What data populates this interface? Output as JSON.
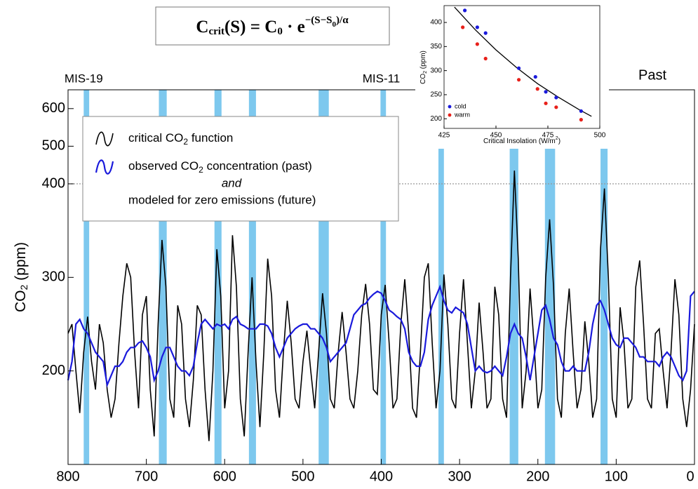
{
  "chart_data": {
    "type": "line",
    "formula": [
      {
        "text": "C"
      },
      {
        "text": "crit",
        "shift": "sub"
      },
      {
        "text": "(S) = C"
      },
      {
        "text": "0",
        "shift": "sub"
      },
      {
        "text": " · e"
      },
      {
        "text": "−(S−S",
        "shift": "sup"
      },
      {
        "text": "0",
        "shift": "supsub"
      },
      {
        "text": ")/α",
        "shift": "sup"
      }
    ],
    "ylabel": [
      "CO",
      "2",
      " (ppm)"
    ],
    "annotations": [
      {
        "text": "MIS-19",
        "x": 780
      },
      {
        "text": "MIS-11",
        "x": 400
      }
    ],
    "corner_label": "Past",
    "xlim": [
      800,
      0
    ],
    "xticks": [
      800,
      700,
      600,
      500,
      400,
      300,
      200,
      100,
      0
    ],
    "ylim": [
      100,
      650
    ],
    "ybreak": 400,
    "yticks": [
      200,
      300,
      400,
      500,
      600
    ],
    "hline": 400,
    "bands": [
      [
        780,
        773
      ],
      [
        684,
        674
      ],
      [
        613,
        604
      ],
      [
        569,
        560
      ],
      [
        480,
        467
      ],
      [
        401,
        394
      ],
      [
        327,
        320
      ],
      [
        236,
        225
      ],
      [
        191,
        178
      ],
      [
        120,
        111
      ]
    ],
    "band_color": "#7dc8ee",
    "x": [
      800,
      795,
      790,
      785,
      780,
      775,
      770,
      765,
      760,
      755,
      750,
      745,
      740,
      735,
      730,
      725,
      720,
      715,
      710,
      705,
      700,
      695,
      690,
      685,
      680,
      675,
      670,
      665,
      660,
      655,
      650,
      645,
      640,
      635,
      630,
      625,
      620,
      615,
      610,
      605,
      600,
      595,
      590,
      585,
      580,
      575,
      570,
      565,
      560,
      555,
      550,
      545,
      540,
      535,
      530,
      525,
      520,
      515,
      510,
      505,
      500,
      495,
      490,
      485,
      480,
      475,
      470,
      465,
      460,
      455,
      450,
      445,
      440,
      435,
      430,
      425,
      420,
      415,
      410,
      405,
      400,
      395,
      390,
      385,
      380,
      375,
      370,
      365,
      360,
      355,
      350,
      345,
      340,
      335,
      330,
      325,
      320,
      315,
      310,
      305,
      300,
      295,
      290,
      285,
      280,
      275,
      270,
      265,
      260,
      255,
      250,
      245,
      240,
      235,
      230,
      225,
      220,
      215,
      210,
      205,
      200,
      195,
      190,
      185,
      180,
      175,
      170,
      165,
      160,
      155,
      150,
      145,
      140,
      135,
      130,
      125,
      120,
      115,
      110,
      105,
      100,
      95,
      90,
      85,
      80,
      75,
      70,
      65,
      60,
      55,
      50,
      45,
      40,
      35,
      30,
      25,
      20,
      15,
      10,
      5,
      0
    ],
    "series": [
      {
        "name": [
          "critical CO",
          "2",
          " function"
        ],
        "color": "#000000",
        "values": [
          240,
          250,
          200,
          155,
          220,
          258,
          210,
          180,
          250,
          230,
          180,
          150,
          170,
          230,
          280,
          315,
          300,
          220,
          160,
          260,
          280,
          180,
          130,
          250,
          340,
          290,
          170,
          150,
          270,
          250,
          170,
          140,
          190,
          270,
          260,
          180,
          125,
          200,
          330,
          280,
          160,
          200,
          345,
          290,
          170,
          130,
          220,
          300,
          210,
          140,
          220,
          320,
          280,
          180,
          150,
          220,
          275,
          230,
          170,
          160,
          210,
          243,
          200,
          160,
          220,
          283,
          240,
          170,
          160,
          220,
          263,
          220,
          170,
          160,
          200,
          260,
          293,
          250,
          180,
          175,
          260,
          292,
          230,
          160,
          170,
          250,
          298,
          240,
          160,
          150,
          220,
          300,
          315,
          230,
          160,
          200,
          303,
          250,
          170,
          160,
          240,
          298,
          230,
          160,
          200,
          273,
          220,
          160,
          170,
          290,
          260,
          170,
          150,
          300,
          435,
          320,
          160,
          200,
          288,
          230,
          160,
          180,
          300,
          362,
          290,
          170,
          150,
          240,
          288,
          220,
          160,
          180,
          253,
          210,
          150,
          170,
          330,
          395,
          300,
          170,
          150,
          268,
          230,
          160,
          170,
          290,
          318,
          250,
          170,
          160,
          240,
          245,
          200,
          160,
          220,
          298,
          260,
          170,
          140,
          180,
          250
        ]
      },
      {
        "name": [
          "observed CO",
          "2",
          " concentration (past)"
        ],
        "extra": [
          "and",
          "modeled for zero emissions (future)"
        ],
        "color": "#1a1adc",
        "values": [
          190,
          210,
          250,
          255,
          245,
          240,
          230,
          220,
          215,
          210,
          185,
          195,
          205,
          205,
          210,
          220,
          225,
          225,
          230,
          232,
          225,
          215,
          190,
          200,
          215,
          225,
          225,
          215,
          205,
          200,
          200,
          195,
          205,
          230,
          250,
          255,
          250,
          245,
          250,
          248,
          250,
          245,
          255,
          258,
          250,
          248,
          245,
          245,
          245,
          250,
          250,
          248,
          240,
          225,
          215,
          225,
          235,
          240,
          245,
          248,
          250,
          250,
          245,
          245,
          240,
          235,
          225,
          210,
          215,
          220,
          225,
          230,
          245,
          260,
          265,
          270,
          272,
          278,
          282,
          285,
          283,
          275,
          265,
          262,
          258,
          255,
          245,
          220,
          210,
          205,
          205,
          220,
          255,
          270,
          280,
          290,
          275,
          265,
          262,
          268,
          265,
          262,
          250,
          225,
          200,
          205,
          200,
          198,
          200,
          205,
          200,
          195,
          215,
          240,
          250,
          240,
          235,
          215,
          190,
          215,
          240,
          265,
          270,
          255,
          235,
          228,
          210,
          200,
          200,
          205,
          200,
          200,
          200,
          220,
          250,
          270,
          275,
          265,
          250,
          235,
          228,
          225,
          235,
          235,
          230,
          225,
          215,
          215,
          210,
          210,
          210,
          205,
          215,
          220,
          215,
          205,
          195,
          190,
          200,
          280,
          285
        ]
      }
    ],
    "inset": {
      "type": "scatter",
      "xlabel": [
        "Critical Insolation (W/m",
        "2",
        ")"
      ],
      "ylabel": [
        "CO",
        "2",
        " (ppm)"
      ],
      "xlim": [
        425,
        500
      ],
      "xticks": [
        425,
        450,
        475,
        500
      ],
      "ylim": [
        180,
        435
      ],
      "yticks": [
        200,
        250,
        300,
        350,
        400
      ],
      "series": [
        {
          "name": "cold",
          "color": "#1a1adc",
          "x": [
            435,
            441,
            445,
            461,
            469,
            474,
            479,
            491
          ],
          "values": [
            425,
            390,
            378,
            305,
            287,
            256,
            244,
            216
          ]
        },
        {
          "name": "warm",
          "color": "#e8201a",
          "x": [
            434,
            441,
            445,
            461,
            470,
            474,
            479,
            491
          ],
          "values": [
            390,
            355,
            325,
            281,
            262,
            232,
            224,
            198
          ]
        }
      ],
      "fit": {
        "color": "#000000",
        "x": [
          430,
          440,
          450,
          460,
          470,
          480,
          490,
          496
        ],
        "values": [
          432,
          385,
          343,
          306,
          273,
          245,
          219,
          205
        ]
      }
    }
  }
}
